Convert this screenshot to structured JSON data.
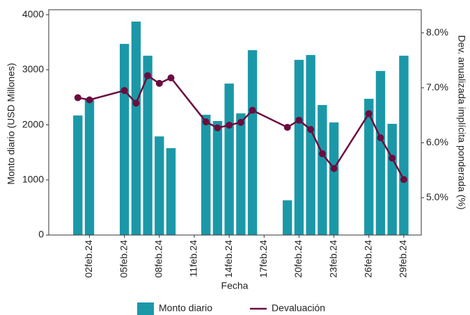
{
  "chart_data": {
    "type": "bar",
    "x_label": "Fecha",
    "y_label": "Monto diario (USD Millones)",
    "y2_label": "Dev. anualizada implícita ponderada (%)",
    "x": [
      "2024-02-01",
      "2024-02-02",
      "2024-02-05",
      "2024-02-06",
      "2024-02-07",
      "2024-02-08",
      "2024-02-09",
      "2024-02-12",
      "2024-02-13",
      "2024-02-14",
      "2024-02-15",
      "2024-02-16",
      "2024-02-19",
      "2024-02-20",
      "2024-02-21",
      "2024-02-22",
      "2024-02-23",
      "2024-02-26",
      "2024-02-27",
      "2024-02-28",
      "2024-02-29"
    ],
    "series": [
      {
        "name": "Monto diario",
        "type": "bar",
        "axis": "y",
        "color": "#1b98a8",
        "values": [
          2170,
          2460,
          3470,
          3875,
          3255,
          1790,
          1577,
          2183,
          2070,
          2750,
          2208,
          3356,
          630,
          3180,
          3268,
          2360,
          2044,
          2473,
          2978,
          2019,
          3255
        ]
      },
      {
        "name": "Devaluación",
        "type": "line",
        "axis": "y2",
        "color": "#6b0d3e",
        "values": [
          6.82,
          6.78,
          6.95,
          6.72,
          7.22,
          7.08,
          7.18,
          6.38,
          6.27,
          6.32,
          6.37,
          6.59,
          6.28,
          6.41,
          6.24,
          5.8,
          5.53,
          6.53,
          6.09,
          5.72,
          5.33
        ]
      }
    ],
    "xlim": [
      "2024-01-29T12:00",
      "2024-03-01T12:00"
    ],
    "xticks": [
      {
        "value": "2024-02-02",
        "label": "02feb.24"
      },
      {
        "value": "2024-02-05",
        "label": "05feb.24"
      },
      {
        "value": "2024-02-08",
        "label": "08feb.24"
      },
      {
        "value": "2024-02-11",
        "label": "11feb.24"
      },
      {
        "value": "2024-02-14",
        "label": "14feb.24"
      },
      {
        "value": "2024-02-17",
        "label": "17feb.24"
      },
      {
        "value": "2024-02-20",
        "label": "20feb.24"
      },
      {
        "value": "2024-02-23",
        "label": "23feb.24"
      },
      {
        "value": "2024-02-26",
        "label": "26feb.24"
      },
      {
        "value": "2024-02-29",
        "label": "29feb.24"
      }
    ],
    "ylim": [
      0,
      4090
    ],
    "yticks": [
      0,
      1000,
      2000,
      3000,
      4000
    ],
    "y2lim": [
      4.32,
      8.42
    ],
    "y2ticks": [
      {
        "value": 5.0,
        "label": "5.0%"
      },
      {
        "value": 6.0,
        "label": "6.0%"
      },
      {
        "value": 7.0,
        "label": "7.0%"
      },
      {
        "value": 8.0,
        "label": "8.0%"
      }
    ],
    "legend": "bottom"
  }
}
